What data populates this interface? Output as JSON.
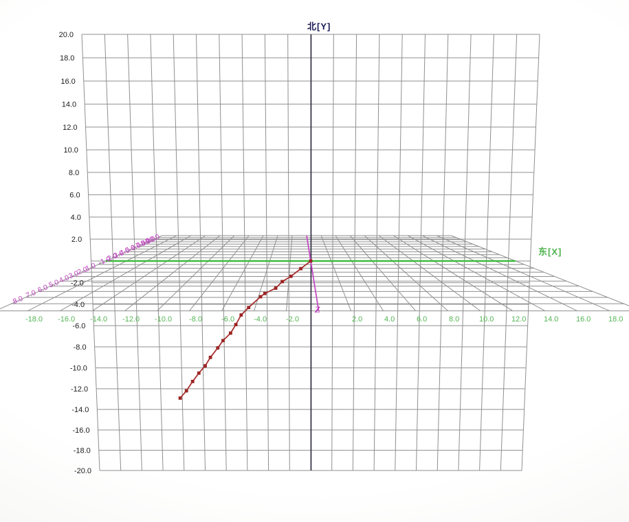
{
  "chart_data": {
    "type": "line",
    "projection": "3d-wireframe-trajectory-view",
    "title": "",
    "axes": {
      "north_y": {
        "label": "北[Y]",
        "min": -20,
        "max": 20,
        "tick_step": 2,
        "tick_labels": [
          "20.0",
          "18.0",
          "16.0",
          "14.0",
          "12.0",
          "10.0",
          "8.0",
          "6.0",
          "4.0",
          "2.0",
          "-2.0",
          "-4.0",
          "-6.0",
          "-8.0",
          "-10.0",
          "-12.0",
          "-14.0",
          "-16.0",
          "-18.0",
          "-20.0"
        ],
        "color": "#1a1a55"
      },
      "east_x": {
        "label": "东[X]",
        "min": -20,
        "max": 20,
        "tick_step": 2,
        "tick_labels": [
          "-18.0",
          "-16.0",
          "-14.0",
          "-12.0",
          "-10.0",
          "-8.0",
          "-6.0",
          "-4.0",
          "-2.0",
          "2.0",
          "4.0",
          "6.0",
          "8.0",
          "10.0",
          "12.0",
          "14.0",
          "16.0",
          "18.0"
        ],
        "color": "#55b455"
      },
      "z": {
        "label": "Z",
        "min": -10,
        "max": 10,
        "tick_step": 1,
        "tick_labels_positive": [
          "1.0",
          "2.0",
          "3.0",
          "4.0",
          "5.0",
          "6.0",
          "7.0",
          "8.0"
        ],
        "tick_labels_negative": [
          "-1.0",
          "-2.0",
          "-3.0",
          "-4.0",
          "-5.0",
          "-6.0",
          "-7.0",
          "-8.0",
          "-9.0",
          "-10.0"
        ],
        "color": "#bb3fbb"
      }
    },
    "grid": {
      "on": true,
      "vertical_plane": {
        "x_range": [
          -20,
          20
        ],
        "y_range": [
          -20,
          20
        ],
        "step": 2
      },
      "ground_plane": {
        "x_range": [
          -20,
          20
        ],
        "z_range": [
          -10,
          10
        ],
        "x_step": 2,
        "z_step": 1
      }
    },
    "legend": {
      "visible": false
    },
    "series": [
      {
        "name": "trajectory",
        "color": "#a93030",
        "marker": "square",
        "points_east_north": [
          [
            0.0,
            0.0
          ],
          [
            -0.9,
            -0.7
          ],
          [
            -1.8,
            -1.4
          ],
          [
            -2.6,
            -1.9
          ],
          [
            -3.2,
            -2.5
          ],
          [
            -4.2,
            -3.0
          ],
          [
            -4.6,
            -3.3
          ],
          [
            -5.7,
            -4.3
          ],
          [
            -6.4,
            -5.0
          ],
          [
            -6.9,
            -5.9
          ],
          [
            -7.4,
            -6.7
          ],
          [
            -8.1,
            -7.4
          ],
          [
            -8.6,
            -8.1
          ],
          [
            -9.3,
            -9.0
          ],
          [
            -9.8,
            -9.8
          ],
          [
            -10.4,
            -10.5
          ],
          [
            -11.0,
            -11.3
          ],
          [
            -11.6,
            -12.2
          ],
          [
            -12.2,
            -12.9
          ]
        ]
      }
    ]
  },
  "colors": {
    "grid_line": "#8f8f8f",
    "y_axis_line": "#26263a",
    "x_axis_line": "#3dbb3d",
    "z_axis_line": "#c44ac4",
    "y_tick_text": "#1c1c1c",
    "x_tick_text": "#55b455",
    "z_tick_text": "#bb3fbb",
    "trajectory": "#a93030"
  }
}
